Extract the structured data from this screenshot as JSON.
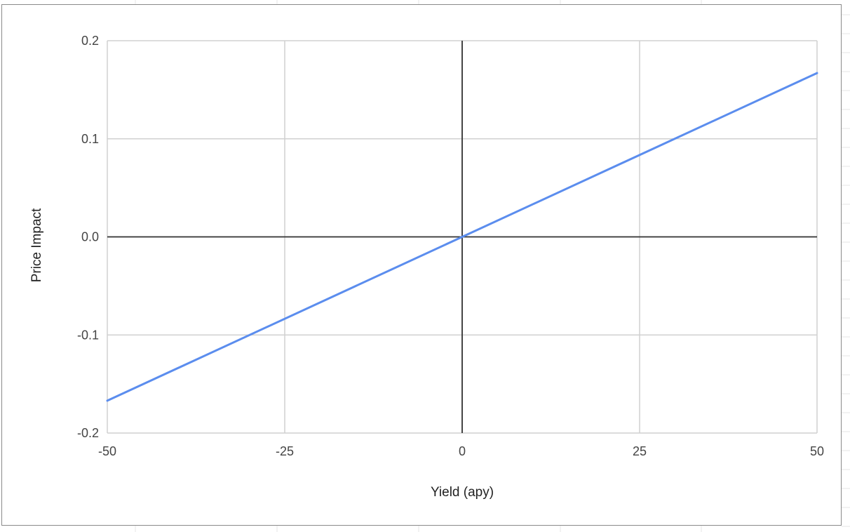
{
  "chart_data": {
    "type": "line",
    "title": "",
    "xlabel": "Yield (apy)",
    "ylabel": "Price Impact",
    "xlim": [
      -50,
      50
    ],
    "ylim": [
      -0.2,
      0.2
    ],
    "x_ticks": [
      -50,
      -25,
      0,
      25,
      50
    ],
    "x_tick_labels": [
      "-50",
      "-25",
      "0",
      "25",
      "50"
    ],
    "y_ticks": [
      -0.2,
      -0.1,
      0.0,
      0.1,
      0.2
    ],
    "y_tick_labels": [
      "-0.2",
      "-0.1",
      "0.0",
      "0.1",
      "0.2"
    ],
    "grid": true,
    "series": [
      {
        "x": [
          -50,
          0,
          50
        ],
        "y": [
          -0.167,
          0.0,
          0.167
        ],
        "color": "#5b8dee"
      }
    ],
    "axis_color": "#333333",
    "grid_color": "#d0d0d0"
  }
}
